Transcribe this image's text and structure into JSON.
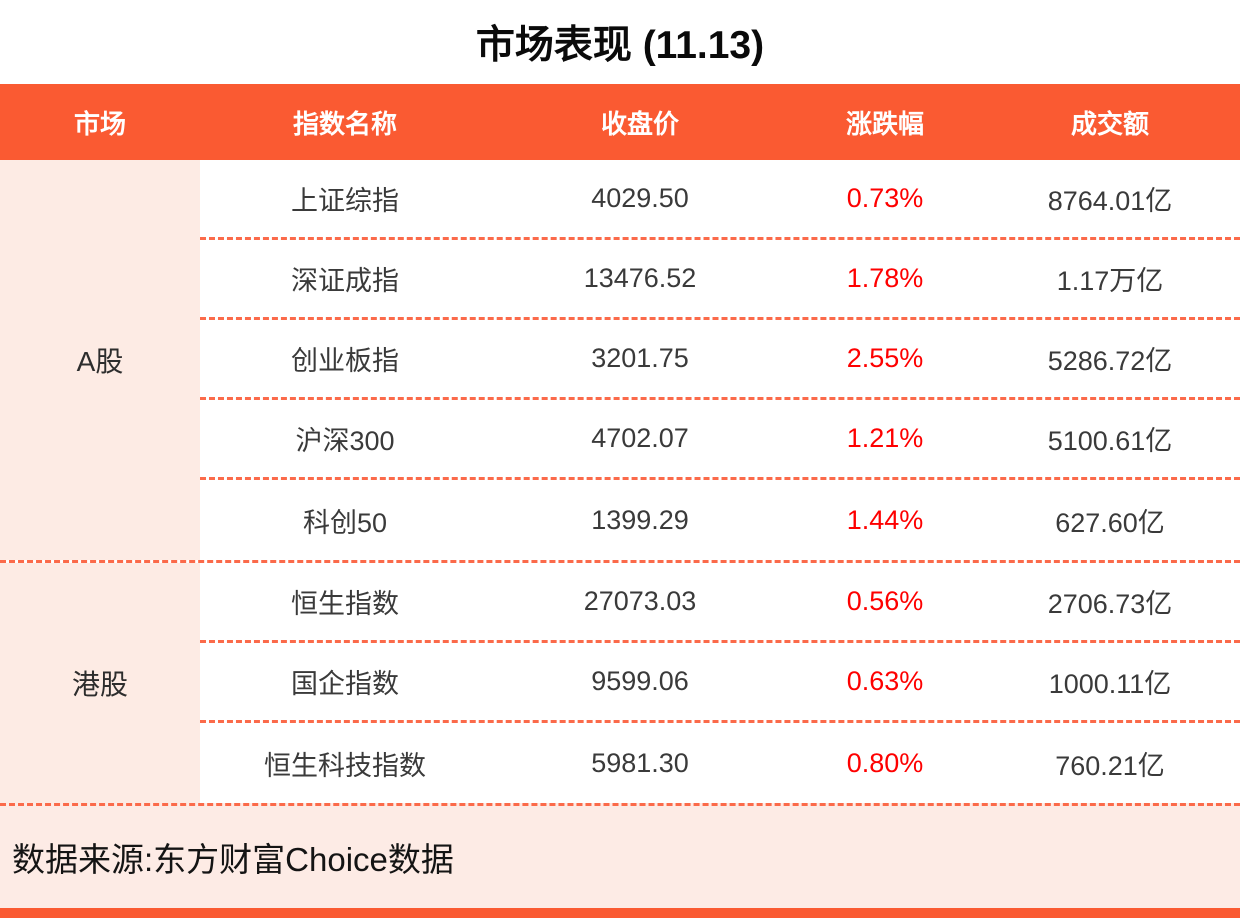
{
  "title": "市场表现 (11.13)",
  "colors": {
    "accent_orange": "#fa5a32",
    "dashed_divider": "#fb6a4a",
    "group_cell_pink": "#fdebe4",
    "footer_pink": "#fdebe5",
    "change_red": "#fe0000",
    "header_text": "#ffffff",
    "body_text": "#3a3a3a"
  },
  "table": {
    "headers": [
      "市场",
      "指数名称",
      "收盘价",
      "涨跌幅",
      "成交额"
    ],
    "groups": [
      {
        "market": "A股",
        "rows": [
          {
            "name": "上证综指",
            "close": "4029.50",
            "change": "0.73%",
            "turnover": "8764.01亿"
          },
          {
            "name": "深证成指",
            "close": "13476.52",
            "change": "1.78%",
            "turnover": "1.17万亿"
          },
          {
            "name": "创业板指",
            "close": "3201.75",
            "change": "2.55%",
            "turnover": "5286.72亿"
          },
          {
            "name": "沪深300",
            "close": "4702.07",
            "change": "1.21%",
            "turnover": "5100.61亿"
          },
          {
            "name": "科创50",
            "close": "1399.29",
            "change": "1.44%",
            "turnover": "627.60亿"
          }
        ]
      },
      {
        "market": "港股",
        "rows": [
          {
            "name": "恒生指数",
            "close": "27073.03",
            "change": "0.56%",
            "turnover": "2706.73亿"
          },
          {
            "name": "国企指数",
            "close": "9599.06",
            "change": "0.63%",
            "turnover": "1000.11亿"
          },
          {
            "name": "恒生科技指数",
            "close": "5981.30",
            "change": "0.80%",
            "turnover": "760.21亿"
          }
        ]
      }
    ]
  },
  "footer": {
    "source": "数据来源:东方财富Choice数据"
  },
  "chart_data": {
    "type": "table",
    "title": "市场表现 (11.13)",
    "columns": [
      "市场",
      "指数名称",
      "收盘价",
      "涨跌幅",
      "成交额"
    ],
    "rows": [
      [
        "A股",
        "上证综指",
        "4029.50",
        "0.73%",
        "8764.01亿"
      ],
      [
        "A股",
        "深证成指",
        "13476.52",
        "1.78%",
        "1.17万亿"
      ],
      [
        "A股",
        "创业板指",
        "3201.75",
        "2.55%",
        "5286.72亿"
      ],
      [
        "A股",
        "沪深300",
        "4702.07",
        "1.21%",
        "5100.61亿"
      ],
      [
        "A股",
        "科创50",
        "1399.29",
        "1.44%",
        "627.60亿"
      ],
      [
        "港股",
        "恒生指数",
        "27073.03",
        "0.56%",
        "2706.73亿"
      ],
      [
        "港股",
        "国企指数",
        "9599.06",
        "0.63%",
        "1000.11亿"
      ],
      [
        "港股",
        "恒生科技指数",
        "5981.30",
        "0.80%",
        "760.21亿"
      ]
    ],
    "note": "数据来源:东方财富Choice数据"
  }
}
